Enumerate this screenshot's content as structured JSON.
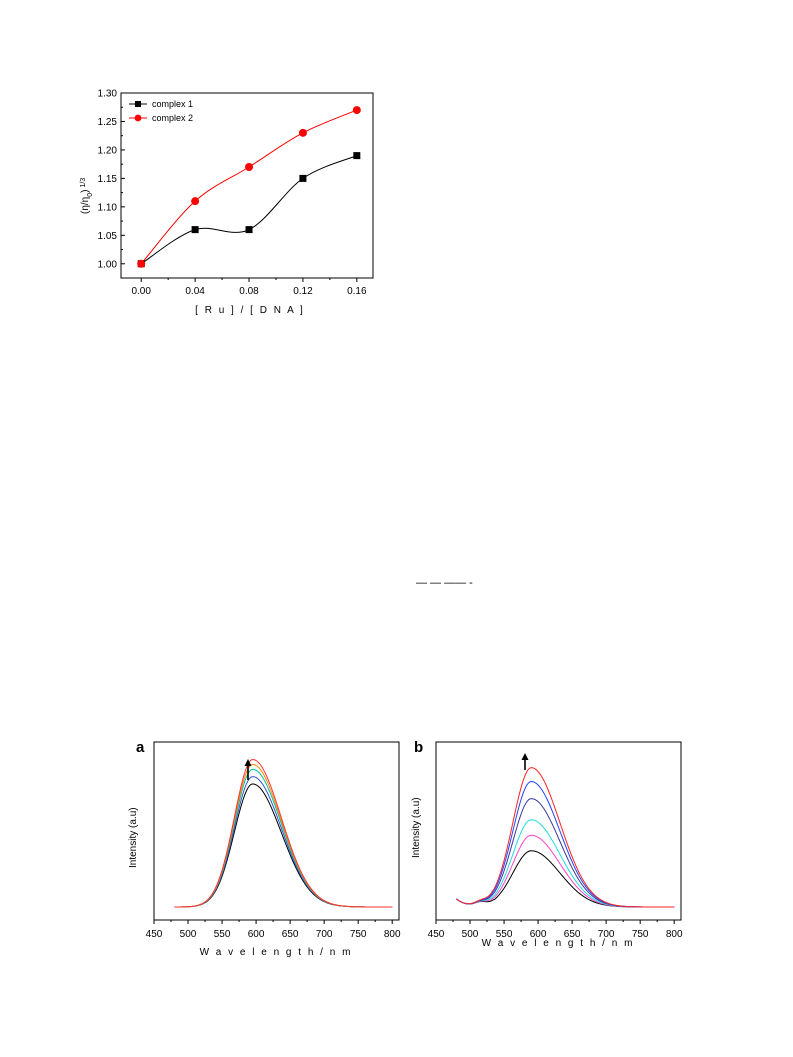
{
  "charts": {
    "viscosity": {
      "type": "scatter",
      "x_tick_labels": [
        "0.00",
        "0.04",
        "0.08",
        "0.12",
        "0.16"
      ],
      "y_tick_labels": [
        "1.00",
        "1.05",
        "1.10",
        "1.15",
        "1.20",
        "1.25",
        "1.30"
      ],
      "xlabel": "[ R u ] / [ D N A ]",
      "ylabel_main": "(η/η",
      "ylabel_sub": "0",
      "ylabel_end": ")",
      "ylabel_sup": "1/3",
      "xlim": [
        -0.015,
        0.172
      ],
      "ylim": [
        0.975,
        1.3
      ],
      "legend_position": "top-left",
      "colors": {
        "complex1": "#000000",
        "complex2": "#ff0000"
      },
      "series": [
        {
          "name": "complex 1",
          "marker": "square",
          "x": [
            0.0,
            0.04,
            0.08,
            0.12,
            0.16
          ],
          "y": [
            1.0,
            1.06,
            1.06,
            1.15,
            1.19
          ]
        },
        {
          "name": "complex 2",
          "marker": "circle",
          "x": [
            0.0,
            0.04,
            0.08,
            0.12,
            0.16
          ],
          "y": [
            1.0,
            1.11,
            1.17,
            1.23,
            1.27
          ]
        }
      ]
    },
    "emission_a": {
      "type": "line",
      "panel_label": "a",
      "x_tick_labels": [
        "450",
        "500",
        "550",
        "600",
        "650",
        "700",
        "750",
        "800"
      ],
      "xlabel": "W a v e l e n g t h / n m",
      "ylabel": "Intensity (a.u)",
      "xlim": [
        450,
        810
      ],
      "peak_nm": 595,
      "arrow_direction": "up",
      "series": [
        {
          "color": "#000000",
          "peak": 0.755
        },
        {
          "color": "#3355cc",
          "peak": 0.8
        },
        {
          "color": "#00c0a0",
          "peak": 0.845
        },
        {
          "color": "#ff8800",
          "peak": 0.875
        },
        {
          "color": "#ff3333",
          "peak": 0.905
        }
      ]
    },
    "emission_b": {
      "type": "line",
      "panel_label": "b",
      "x_tick_labels": [
        "450",
        "500",
        "550",
        "600",
        "650",
        "700",
        "750",
        "800"
      ],
      "xlabel": "W a v e l e n g t h / n m",
      "ylabel": "Intensity (a.u)",
      "xlim": [
        450,
        810
      ],
      "peak_nm": 590,
      "arrow_direction": "up",
      "series": [
        {
          "color": "#000000",
          "peak": 0.345
        },
        {
          "color": "#ff44cc",
          "peak": 0.44
        },
        {
          "color": "#22dddd",
          "peak": 0.535
        },
        {
          "color": "#3a3aa0",
          "peak": 0.665
        },
        {
          "color": "#2244ff",
          "peak": 0.77
        },
        {
          "color": "#ff2222",
          "peak": 0.855
        }
      ]
    }
  },
  "equation_fragment": "— — ——  -"
}
